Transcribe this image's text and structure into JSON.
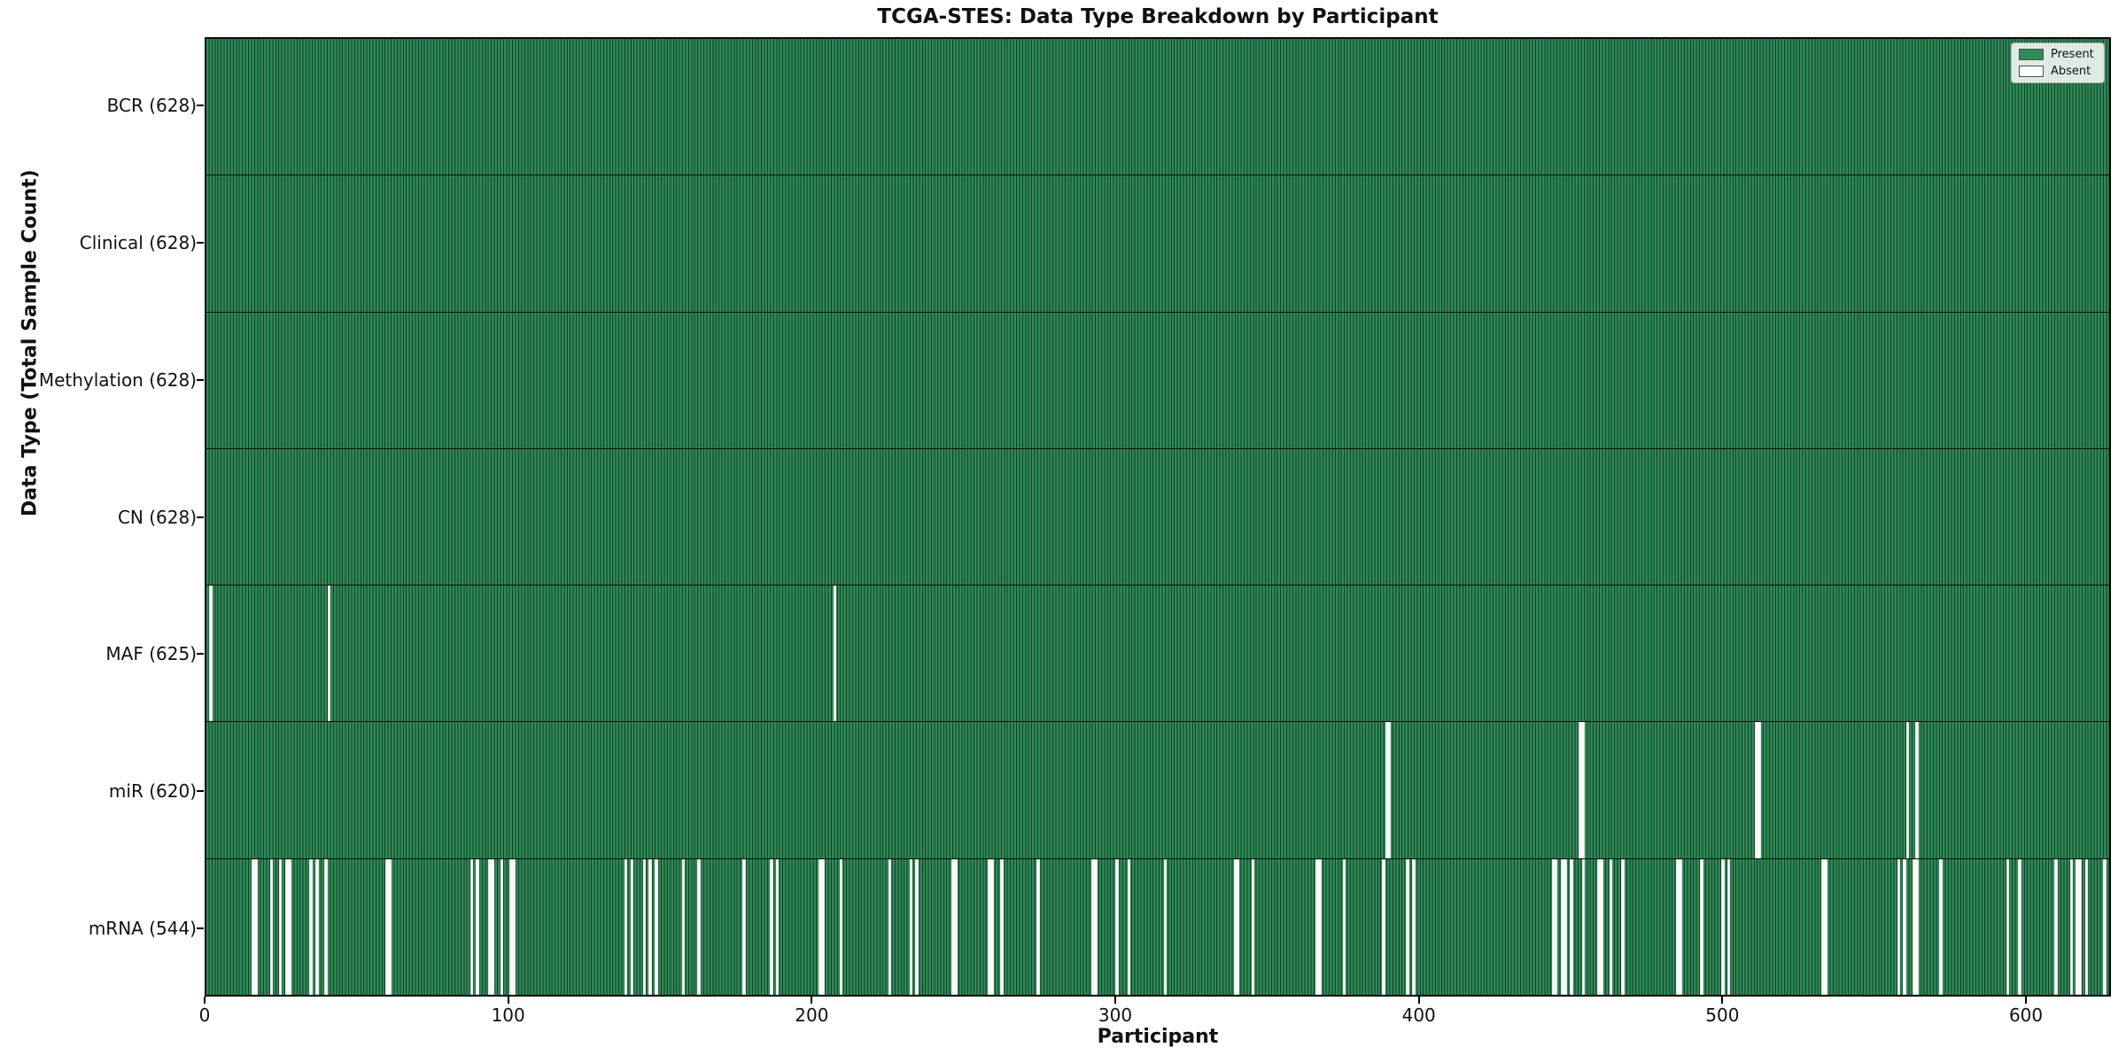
{
  "chart_data": {
    "type": "heatmap",
    "title": "TCGA-STES: Data Type Breakdown by Participant",
    "xlabel": "Participant",
    "ylabel": "Data Type (Total Sample Count)",
    "n_participants": 628,
    "x_ticks": [
      0,
      100,
      200,
      300,
      400,
      500,
      600
    ],
    "xlim": [
      0,
      628
    ],
    "grid": false,
    "legend_position": "upper right",
    "colors": {
      "present": "#2e8b57",
      "bar_edge": "#143d26",
      "absent": "#fafafa",
      "row_divider": "#0d0d0d",
      "plot_border": "#000000",
      "legend_border": "#b3b3b3"
    },
    "legend": [
      {
        "label": "Present",
        "color": "#2e8b57"
      },
      {
        "label": "Absent",
        "color": "#ffffff"
      }
    ],
    "rows": [
      {
        "key": "bcr",
        "label": "BCR (628)",
        "data_type": "BCR",
        "present_count": 628,
        "absent_ranges": []
      },
      {
        "key": "clinical",
        "label": "Clinical (628)",
        "data_type": "Clinical",
        "present_count": 628,
        "absent_ranges": []
      },
      {
        "key": "methylation",
        "label": "Methylation (628)",
        "data_type": "Methylation",
        "present_count": 628,
        "absent_ranges": []
      },
      {
        "key": "cn",
        "label": "CN (628)",
        "data_type": "CN",
        "present_count": 628,
        "absent_ranges": []
      },
      {
        "key": "maf",
        "label": "MAF (625)",
        "data_type": "MAF",
        "present_count": 625,
        "absent_ranges": [
          [
            1,
            1
          ],
          [
            40,
            1
          ],
          [
            207,
            1
          ]
        ]
      },
      {
        "key": "mir",
        "label": "miR (620)",
        "data_type": "miR",
        "present_count": 620,
        "absent_ranges": [
          [
            389,
            2
          ],
          [
            453,
            2
          ],
          [
            511,
            2
          ],
          [
            561,
            1
          ],
          [
            564,
            1
          ]
        ]
      },
      {
        "key": "mrna",
        "label": "mRNA (544)",
        "data_type": "mRNA",
        "present_count": 544,
        "absent_ranges": [
          [
            15,
            2
          ],
          [
            21,
            1
          ],
          [
            24,
            1
          ],
          [
            26,
            2
          ],
          [
            34,
            1
          ],
          [
            36,
            1
          ],
          [
            39,
            1
          ],
          [
            59,
            2
          ],
          [
            87,
            1
          ],
          [
            89,
            1
          ],
          [
            93,
            2
          ],
          [
            97,
            1
          ],
          [
            100,
            2
          ],
          [
            138,
            1
          ],
          [
            140,
            1
          ],
          [
            144,
            1
          ],
          [
            146,
            1
          ],
          [
            148,
            1
          ],
          [
            157,
            1
          ],
          [
            162,
            1
          ],
          [
            177,
            1
          ],
          [
            186,
            1
          ],
          [
            188,
            1
          ],
          [
            202,
            2
          ],
          [
            209,
            1
          ],
          [
            225,
            1
          ],
          [
            232,
            1
          ],
          [
            234,
            1
          ],
          [
            246,
            2
          ],
          [
            258,
            2
          ],
          [
            262,
            1
          ],
          [
            274,
            1
          ],
          [
            292,
            2
          ],
          [
            300,
            1
          ],
          [
            304,
            1
          ],
          [
            316,
            1
          ],
          [
            339,
            2
          ],
          [
            345,
            1
          ],
          [
            366,
            2
          ],
          [
            375,
            1
          ],
          [
            388,
            1
          ],
          [
            396,
            1
          ],
          [
            398,
            1
          ],
          [
            444,
            2
          ],
          [
            447,
            2
          ],
          [
            450,
            1
          ],
          [
            454,
            1
          ],
          [
            459,
            2
          ],
          [
            463,
            1
          ],
          [
            467,
            1
          ],
          [
            485,
            2
          ],
          [
            493,
            1
          ],
          [
            500,
            1
          ],
          [
            502,
            1
          ],
          [
            533,
            2
          ],
          [
            558,
            1
          ],
          [
            560,
            1
          ],
          [
            563,
            2
          ],
          [
            572,
            1
          ],
          [
            594,
            1
          ],
          [
            598,
            1
          ],
          [
            610,
            1
          ],
          [
            615,
            1
          ],
          [
            617,
            2
          ],
          [
            620,
            1
          ],
          [
            626,
            1
          ]
        ]
      }
    ]
  }
}
